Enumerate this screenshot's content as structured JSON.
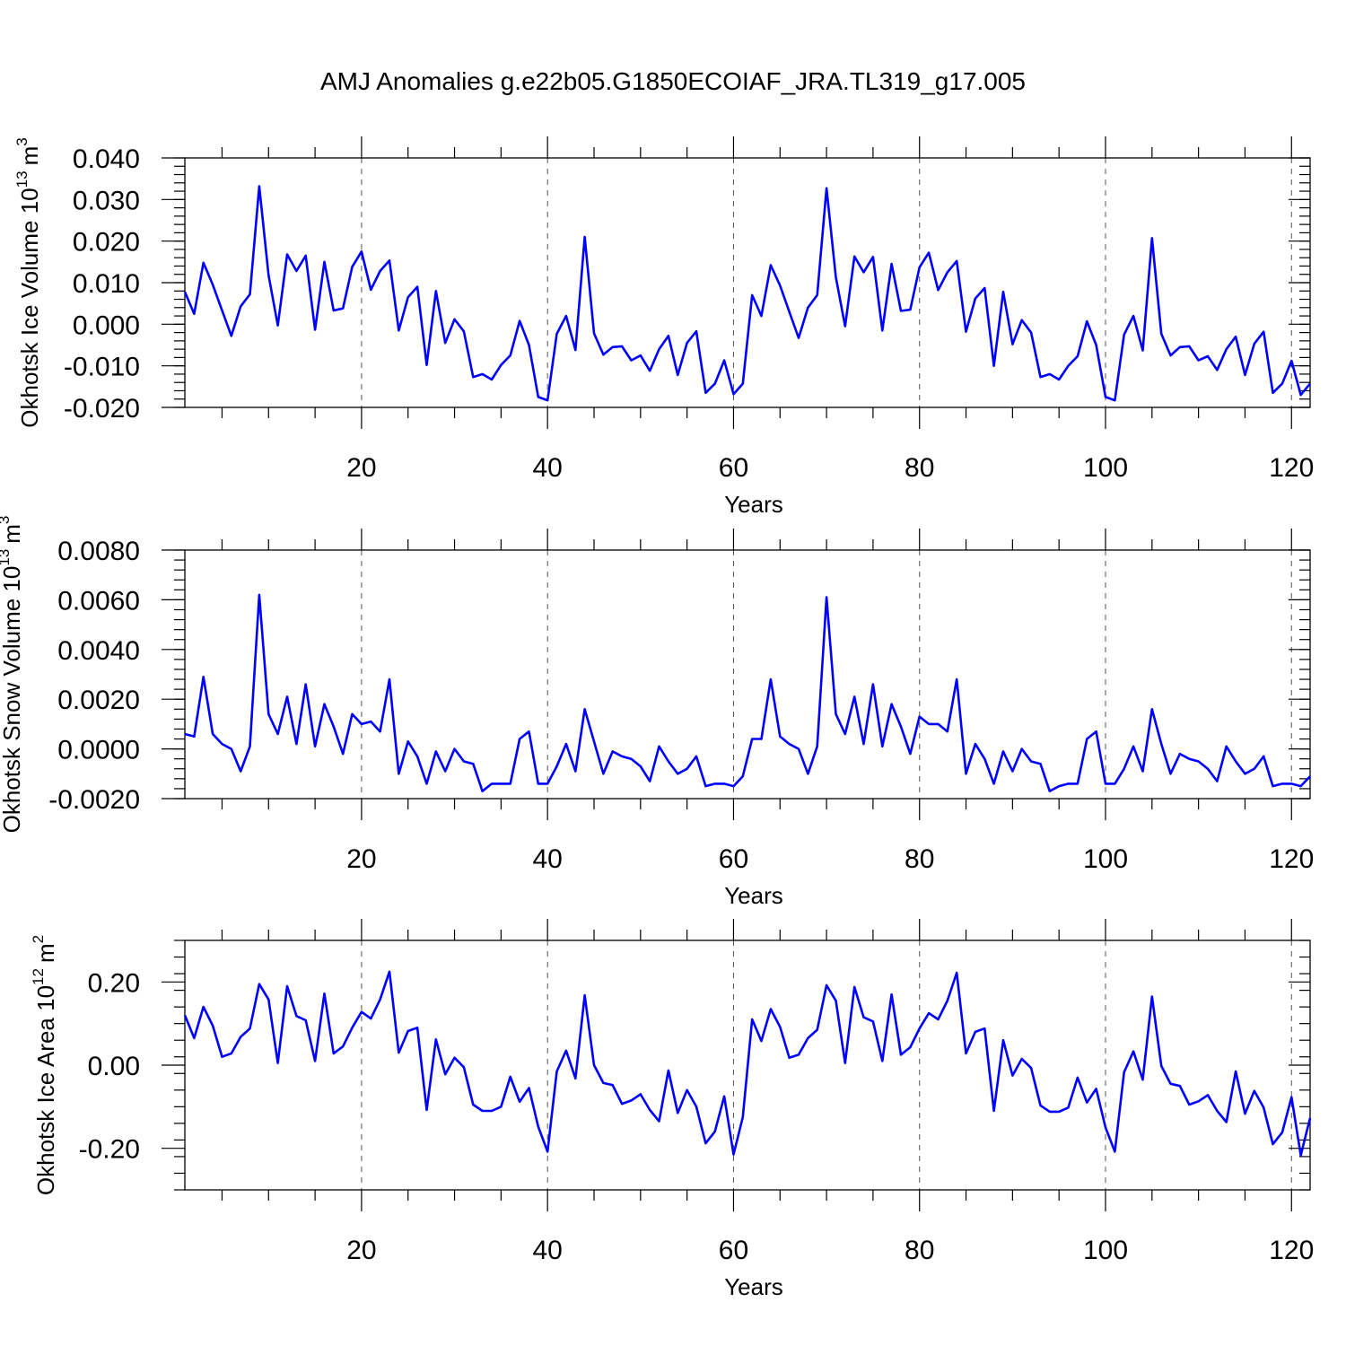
{
  "figure_title": "AMJ Anomalies g.e22b05.G1850ECOIAF_JRA.TL319_g17.005",
  "chart_data": [
    {
      "type": "line",
      "title": "AMJ Anomalies g.e22b05.G1850ECOIAF_JRA.TL319_g17.005",
      "xlabel": "Years",
      "ylabel": "Okhotsk Ice Volume 10",
      "ylabel_exponent": "13",
      "ylabel_unit": "m",
      "ylabel_unit_exponent": "3",
      "xlim": [
        1,
        122
      ],
      "ylim": [
        -0.02,
        0.04
      ],
      "x_ticks": [
        20,
        40,
        60,
        80,
        100,
        120
      ],
      "x_tick_labels": [
        "20",
        "40",
        "60",
        "80",
        "100",
        "120"
      ],
      "y_ticks": [
        -0.02,
        -0.01,
        0,
        0.01,
        0.02,
        0.03,
        0.04
      ],
      "y_tick_labels": [
        "-0.020",
        "-0.010",
        "0.000",
        "0.010",
        "0.020",
        "0.030",
        "0.040"
      ],
      "grid_x": [
        20,
        40,
        60,
        80,
        100,
        120
      ],
      "series": [
        {
          "name": "Okhotsk Ice Volume",
          "color": "#0000ff",
          "values": [
            0.0078,
            0.0025,
            0.0148,
            0.0095,
            0.0033,
            -0.0028,
            0.0043,
            0.0072,
            0.0332,
            0.0118,
            -0.0003,
            0.0168,
            0.0128,
            0.0165,
            -0.0013,
            0.015,
            0.0033,
            0.0038,
            0.0138,
            0.0175,
            0.0083,
            0.0128,
            0.0153,
            -0.0015,
            0.0065,
            0.009,
            -0.0098,
            0.008,
            -0.0045,
            0.0012,
            -0.0017,
            -0.0127,
            -0.012,
            -0.0133,
            -0.0098,
            -0.0075,
            0.0008,
            -0.005,
            -0.0175,
            -0.0183,
            -0.0023,
            0.002,
            -0.0062,
            0.021,
            -0.0022,
            -0.0073,
            -0.0055,
            -0.0053,
            -0.0087,
            -0.0075,
            -0.0112,
            -0.006,
            -0.0028,
            -0.0122,
            -0.0045,
            -0.0017,
            -0.0165,
            -0.0143,
            -0.0087,
            -0.0168,
            -0.0143,
            0.007,
            0.002,
            0.0142,
            0.0093,
            0.003,
            -0.0033,
            0.004,
            0.007,
            0.0327,
            0.0113,
            -0.0005,
            0.0163,
            0.0125,
            0.0162,
            -0.0015,
            0.0145,
            0.0032,
            0.0035,
            0.0137,
            0.0172,
            0.0082,
            0.0125,
            0.0152,
            -0.0018,
            0.0062,
            0.0087,
            -0.01,
            0.0078,
            -0.0048,
            0.001,
            -0.002,
            -0.0127,
            -0.012,
            -0.0133,
            -0.01,
            -0.0077,
            0.0007,
            -0.005,
            -0.0175,
            -0.0183,
            -0.0025,
            0.002,
            -0.0063,
            0.0207,
            -0.0023,
            -0.0075,
            -0.0055,
            -0.0053,
            -0.0087,
            -0.0077,
            -0.011,
            -0.006,
            -0.003,
            -0.0122,
            -0.0047,
            -0.0018,
            -0.0165,
            -0.0143,
            -0.0088,
            -0.017,
            -0.0143
          ]
        }
      ]
    },
    {
      "type": "line",
      "xlabel": "Years",
      "ylabel": "Okhotsk Snow Volume 10",
      "ylabel_exponent": "13",
      "ylabel_unit": "m",
      "ylabel_unit_exponent": "3",
      "xlim": [
        1,
        122
      ],
      "ylim": [
        -0.002,
        0.008
      ],
      "x_ticks": [
        20,
        40,
        60,
        80,
        100,
        120
      ],
      "x_tick_labels": [
        "20",
        "40",
        "60",
        "80",
        "100",
        "120"
      ],
      "y_ticks": [
        -0.002,
        0,
        0.002,
        0.004,
        0.006,
        0.008
      ],
      "y_tick_labels": [
        "-0.0020",
        "0.0000",
        "0.0020",
        "0.0040",
        "0.0060",
        "0.0080"
      ],
      "grid_x": [
        20,
        40,
        60,
        80,
        100,
        120
      ],
      "series": [
        {
          "name": "Okhotsk Snow Volume",
          "color": "#0000ff",
          "values": [
            0.0006,
            0.0005,
            0.0029,
            0.0006,
            0.0002,
            0.0,
            -0.0009,
            0.0001,
            0.0062,
            0.0014,
            0.0006,
            0.0021,
            0.0002,
            0.0026,
            0.0001,
            0.0018,
            0.0009,
            -0.0002,
            0.0014,
            0.001,
            0.0011,
            0.0007,
            0.0028,
            -0.001,
            0.0003,
            -0.0003,
            -0.0014,
            -0.0001,
            -0.0009,
            0.0,
            -0.0005,
            -0.0006,
            -0.0017,
            -0.0014,
            -0.0014,
            -0.0014,
            0.0004,
            0.0007,
            -0.0014,
            -0.0014,
            -0.0007,
            0.0002,
            -0.0009,
            0.0016,
            0.0003,
            -0.001,
            -0.0001,
            -0.0003,
            -0.0004,
            -0.0007,
            -0.0013,
            0.0001,
            -0.0005,
            -0.001,
            -0.0008,
            -0.0003,
            -0.0015,
            -0.0014,
            -0.0014,
            -0.0015,
            -0.0011,
            0.0004,
            0.0004,
            0.0028,
            0.0005,
            0.0002,
            0.0,
            -0.001,
            0.0001,
            0.0061,
            0.0014,
            0.0006,
            0.0021,
            0.0002,
            0.0026,
            0.0001,
            0.0018,
            0.0009,
            -0.0002,
            0.0013,
            0.001,
            0.001,
            0.0007,
            0.0028,
            -0.001,
            0.0002,
            -0.0004,
            -0.0014,
            -0.0001,
            -0.0009,
            0.0,
            -0.0005,
            -0.0006,
            -0.0017,
            -0.0015,
            -0.0014,
            -0.0014,
            0.0004,
            0.0007,
            -0.0014,
            -0.0014,
            -0.0008,
            0.0001,
            -0.0009,
            0.0016,
            0.0002,
            -0.001,
            -0.0002,
            -0.0004,
            -0.0005,
            -0.0008,
            -0.0013,
            0.0001,
            -0.0005,
            -0.001,
            -0.0008,
            -0.0003,
            -0.0015,
            -0.0014,
            -0.0014,
            -0.0015,
            -0.0011
          ]
        }
      ]
    },
    {
      "type": "line",
      "xlabel": "Years",
      "ylabel": "Okhotsk Ice Area 10",
      "ylabel_exponent": "12",
      "ylabel_unit": "m",
      "ylabel_unit_exponent": "2",
      "xlim": [
        1,
        122
      ],
      "ylim": [
        -0.3,
        0.3
      ],
      "x_ticks": [
        20,
        40,
        60,
        80,
        100,
        120
      ],
      "x_tick_labels": [
        "20",
        "40",
        "60",
        "80",
        "100",
        "120"
      ],
      "y_ticks": [
        -0.2,
        0,
        0.2
      ],
      "y_tick_labels": [
        "-0.20",
        "0.00",
        "0.20"
      ],
      "grid_x": [
        20,
        40,
        60,
        80,
        100,
        120
      ],
      "series": [
        {
          "name": "Okhotsk Ice Area",
          "color": "#0000ff",
          "values": [
            0.12,
            0.065,
            0.14,
            0.095,
            0.02,
            0.028,
            0.068,
            0.088,
            0.195,
            0.158,
            0.005,
            0.19,
            0.118,
            0.108,
            0.01,
            0.172,
            0.028,
            0.045,
            0.09,
            0.128,
            0.112,
            0.158,
            0.225,
            0.03,
            0.082,
            0.09,
            -0.108,
            0.062,
            -0.022,
            0.018,
            -0.005,
            -0.095,
            -0.11,
            -0.11,
            -0.1,
            -0.028,
            -0.088,
            -0.055,
            -0.148,
            -0.208,
            -0.015,
            0.035,
            -0.032,
            0.168,
            0.0,
            -0.043,
            -0.048,
            -0.093,
            -0.085,
            -0.07,
            -0.108,
            -0.135,
            -0.013,
            -0.115,
            -0.06,
            -0.1,
            -0.188,
            -0.16,
            -0.075,
            -0.215,
            -0.125,
            0.11,
            0.058,
            0.135,
            0.092,
            0.018,
            0.025,
            0.065,
            0.085,
            0.192,
            0.155,
            0.005,
            0.188,
            0.115,
            0.105,
            0.01,
            0.17,
            0.025,
            0.043,
            0.088,
            0.125,
            0.11,
            0.155,
            0.222,
            0.028,
            0.08,
            0.088,
            -0.11,
            0.06,
            -0.025,
            0.015,
            -0.007,
            -0.097,
            -0.112,
            -0.112,
            -0.102,
            -0.03,
            -0.09,
            -0.057,
            -0.15,
            -0.208,
            -0.017,
            0.033,
            -0.035,
            0.165,
            -0.002,
            -0.045,
            -0.05,
            -0.095,
            -0.087,
            -0.072,
            -0.11,
            -0.137,
            -0.015,
            -0.117,
            -0.062,
            -0.102,
            -0.19,
            -0.162,
            -0.077,
            -0.217,
            -0.127
          ]
        }
      ]
    }
  ]
}
